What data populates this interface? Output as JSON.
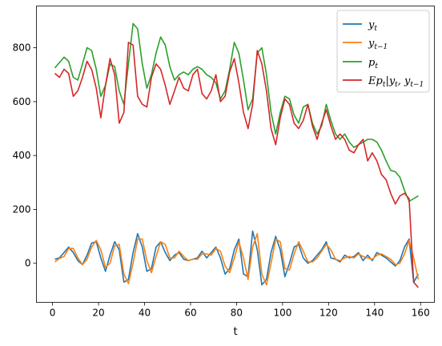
{
  "chart_data": {
    "type": "line",
    "title": "",
    "xlabel": "t",
    "ylabel": "",
    "xlim": [
      -7,
      166
    ],
    "ylim": [
      -145,
      955
    ],
    "xticks": [
      0,
      20,
      40,
      60,
      80,
      100,
      120,
      140,
      160
    ],
    "yticks": [
      0,
      200,
      400,
      600,
      800
    ],
    "grid": false,
    "legend_position": "top-right",
    "series": [
      {
        "name": "y_t",
        "color": "#1f77b4",
        "x": [
          1,
          3,
          5,
          7,
          9,
          11,
          13,
          15,
          17,
          19,
          21,
          23,
          25,
          27,
          29,
          31,
          33,
          35,
          37,
          39,
          41,
          43,
          45,
          47,
          49,
          51,
          53,
          55,
          57,
          59,
          61,
          63,
          65,
          67,
          69,
          71,
          73,
          75,
          77,
          79,
          81,
          83,
          85,
          87,
          89,
          91,
          93,
          95,
          97,
          99,
          101,
          103,
          105,
          107,
          109,
          111,
          113,
          115,
          117,
          119,
          121,
          123,
          125,
          127,
          129,
          131,
          133,
          135,
          137,
          139,
          141,
          143,
          145,
          147,
          149,
          151,
          153,
          155,
          157,
          159
        ],
        "y": [
          15,
          20,
          40,
          60,
          40,
          10,
          -5,
          30,
          75,
          80,
          20,
          -30,
          30,
          80,
          50,
          -70,
          -60,
          40,
          110,
          60,
          -30,
          -20,
          60,
          80,
          40,
          10,
          30,
          40,
          15,
          10,
          15,
          20,
          45,
          20,
          40,
          60,
          20,
          -40,
          -20,
          50,
          90,
          -40,
          -50,
          120,
          50,
          -80,
          -60,
          40,
          100,
          50,
          -50,
          0,
          60,
          70,
          20,
          0,
          10,
          30,
          50,
          80,
          20,
          15,
          5,
          30,
          20,
          25,
          40,
          10,
          30,
          10,
          40,
          30,
          20,
          5,
          -10,
          10,
          60,
          90,
          -70,
          -40
        ]
      },
      {
        "name": "y_{t-1}",
        "color": "#ff7f0e",
        "x": [
          1,
          3,
          5,
          7,
          9,
          11,
          13,
          15,
          17,
          19,
          21,
          23,
          25,
          27,
          29,
          31,
          33,
          35,
          37,
          39,
          41,
          43,
          45,
          47,
          49,
          51,
          53,
          55,
          57,
          59,
          61,
          63,
          65,
          67,
          69,
          71,
          73,
          75,
          77,
          79,
          81,
          83,
          85,
          87,
          89,
          91,
          93,
          95,
          97,
          99,
          101,
          103,
          105,
          107,
          109,
          111,
          113,
          115,
          117,
          119,
          121,
          123,
          125,
          127,
          129,
          131,
          133,
          135,
          137,
          139,
          141,
          143,
          145,
          147,
          149,
          151,
          153,
          155,
          157,
          159
        ],
        "y": [
          5,
          18,
          25,
          55,
          55,
          20,
          -5,
          15,
          60,
          85,
          50,
          -15,
          0,
          65,
          70,
          -40,
          -75,
          0,
          90,
          90,
          10,
          -35,
          25,
          80,
          70,
          20,
          20,
          45,
          25,
          10,
          15,
          15,
          35,
          35,
          30,
          55,
          45,
          -10,
          -35,
          20,
          80,
          20,
          -60,
          60,
          110,
          -40,
          -80,
          0,
          90,
          80,
          -20,
          -25,
          35,
          80,
          45,
          5,
          5,
          20,
          45,
          70,
          50,
          15,
          10,
          20,
          25,
          20,
          35,
          25,
          20,
          15,
          30,
          35,
          25,
          15,
          -5,
          0,
          35,
          85,
          20,
          -60
        ]
      },
      {
        "name": "p_t",
        "color": "#2ca02c",
        "x": [
          1,
          3,
          5,
          7,
          9,
          11,
          13,
          15,
          17,
          19,
          21,
          23,
          25,
          27,
          29,
          31,
          33,
          35,
          37,
          39,
          41,
          43,
          45,
          47,
          49,
          51,
          53,
          55,
          57,
          59,
          61,
          63,
          65,
          67,
          69,
          71,
          73,
          75,
          77,
          79,
          81,
          83,
          85,
          87,
          89,
          91,
          93,
          95,
          97,
          99,
          101,
          103,
          105,
          107,
          109,
          111,
          113,
          115,
          117,
          119,
          121,
          123,
          125,
          127,
          129,
          131,
          133,
          135,
          137,
          139,
          141,
          143,
          145,
          147,
          149,
          151,
          153,
          155,
          157,
          159
        ],
        "y": [
          725,
          745,
          765,
          750,
          690,
          680,
          740,
          800,
          790,
          720,
          620,
          660,
          740,
          730,
          640,
          590,
          740,
          890,
          870,
          740,
          650,
          700,
          780,
          840,
          810,
          730,
          680,
          700,
          710,
          700,
          720,
          730,
          720,
          700,
          690,
          670,
          610,
          640,
          720,
          820,
          780,
          680,
          570,
          610,
          780,
          800,
          700,
          560,
          480,
          560,
          620,
          610,
          550,
          520,
          580,
          590,
          520,
          480,
          510,
          590,
          530,
          480,
          460,
          480,
          450,
          430,
          440,
          450,
          460,
          460,
          450,
          420,
          380,
          345,
          340,
          320,
          270,
          230,
          240,
          250
        ]
      },
      {
        "name": "Ep_t|y_t, y_{t-1}",
        "color": "#d62728",
        "x": [
          1,
          3,
          5,
          7,
          9,
          11,
          13,
          15,
          17,
          19,
          21,
          23,
          25,
          27,
          29,
          31,
          33,
          35,
          37,
          39,
          41,
          43,
          45,
          47,
          49,
          51,
          53,
          55,
          57,
          59,
          61,
          63,
          65,
          67,
          69,
          71,
          73,
          75,
          77,
          79,
          81,
          83,
          85,
          87,
          89,
          91,
          93,
          95,
          97,
          99,
          101,
          103,
          105,
          107,
          109,
          111,
          113,
          115,
          117,
          119,
          121,
          123,
          125,
          127,
          129,
          131,
          133,
          135,
          137,
          139,
          141,
          143,
          145,
          147,
          149,
          151,
          153,
          155,
          157,
          159
        ],
        "y": [
          705,
          690,
          720,
          705,
          620,
          640,
          690,
          750,
          720,
          650,
          540,
          660,
          760,
          700,
          520,
          560,
          820,
          810,
          620,
          590,
          580,
          690,
          740,
          720,
          660,
          590,
          640,
          690,
          650,
          640,
          700,
          720,
          630,
          610,
          640,
          700,
          600,
          620,
          710,
          760,
          670,
          560,
          500,
          590,
          790,
          740,
          640,
          500,
          440,
          540,
          610,
          590,
          520,
          500,
          530,
          590,
          510,
          460,
          520,
          570,
          510,
          460,
          480,
          460,
          420,
          410,
          440,
          460,
          380,
          410,
          380,
          330,
          310,
          260,
          220,
          250,
          260,
          240,
          -70,
          -90
        ]
      }
    ]
  }
}
